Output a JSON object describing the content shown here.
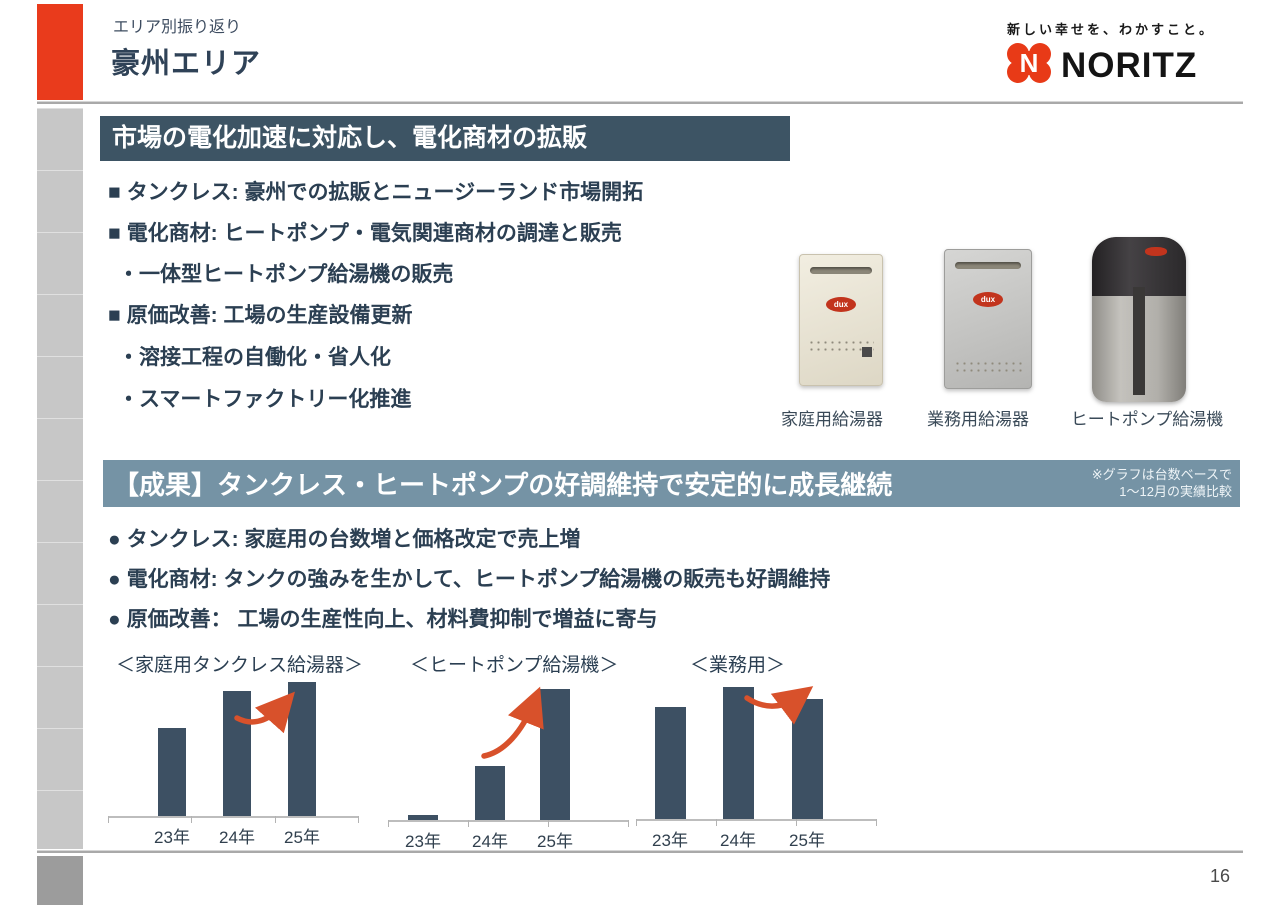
{
  "slide": {
    "eyebrow": "エリア別振り返り",
    "title": "豪州エリア",
    "page_number": "16"
  },
  "brand": {
    "tagline": "新しい幸せを、わかすこと。",
    "logo_text": "NORITZ",
    "logo_color": "#e83a17"
  },
  "section1": {
    "header": "市場の電化加速に対応し、電化商材の拡販",
    "bullets": [
      {
        "marker": "■",
        "text": "タンクレス: 豪州での拡販とニュージーランド市場開拓"
      },
      {
        "marker": "■",
        "text": "電化商材: ヒートポンプ・電気関連商材の調達と販売"
      },
      {
        "marker": "・",
        "text": "一体型ヒートポンプ給湯機の販売"
      },
      {
        "marker": "■",
        "text": "原価改善: 工場の生産設備更新"
      },
      {
        "marker": "・",
        "text": "溶接工程の自働化・省人化"
      },
      {
        "marker": "・",
        "text": "スマートファクトリー化推進"
      }
    ],
    "products": [
      {
        "label": "家庭用給湯器",
        "logo": "dux"
      },
      {
        "label": "業務用給湯器",
        "logo": "dux"
      },
      {
        "label": "ヒートポンプ給湯機",
        "logo": "dux"
      }
    ]
  },
  "section2": {
    "header": "【成果】タンクレス・ヒートポンプの好調維持で安定的に成長継続",
    "note_line1": "※グラフは台数ベースで",
    "note_line2": "1～12月の実績比較",
    "bullets": [
      {
        "marker": "●",
        "text": "タンクレス: 家庭用の台数増と価格改定で売上増"
      },
      {
        "marker": "●",
        "text": "電化商材: タンクの強みを生かして、ヒートポンプ給湯機の販売も好調維持"
      },
      {
        "marker": "●",
        "text": "原価改善： 工場の生産性向上、材料費抑制で増益に寄与"
      }
    ]
  },
  "chart_data": [
    {
      "type": "bar",
      "title": "＜家庭用タンクレス給湯器＞",
      "categories": [
        "23年",
        "24年",
        "25年"
      ],
      "values": [
        66,
        93,
        100
      ],
      "xlabel": "",
      "ylabel": "",
      "value_basis": "relative index, tallest bar = 100 (no numeric axis shown)",
      "annotation": "orange growth arrow from 24年 to 25年",
      "legend": false,
      "grid": false
    },
    {
      "type": "bar",
      "title": "＜ヒートポンプ給湯機＞",
      "categories": [
        "23年",
        "24年",
        "25年"
      ],
      "values": [
        4,
        41,
        100
      ],
      "xlabel": "",
      "ylabel": "",
      "value_basis": "relative index, tallest bar = 100 (no numeric axis shown)",
      "annotation": "orange growth arrow from 24年 to 25年",
      "legend": false,
      "grid": false
    },
    {
      "type": "bar",
      "title": "＜業務用＞",
      "categories": [
        "23年",
        "24年",
        "25年"
      ],
      "values": [
        85,
        100,
        91
      ],
      "xlabel": "",
      "ylabel": "",
      "value_basis": "relative index, tallest bar = 100 (no numeric axis shown)",
      "annotation": "orange arrow from 24年 to 25年 (slight decline)",
      "legend": false,
      "grid": false
    }
  ],
  "colors": {
    "accent_red": "#e93b1c",
    "section1_header_bg": "#3d5464",
    "section2_header_bg": "#7593a5",
    "bar_color": "#3d5063",
    "arrow_color": "#d8512b",
    "body_text": "#2b3f52"
  }
}
